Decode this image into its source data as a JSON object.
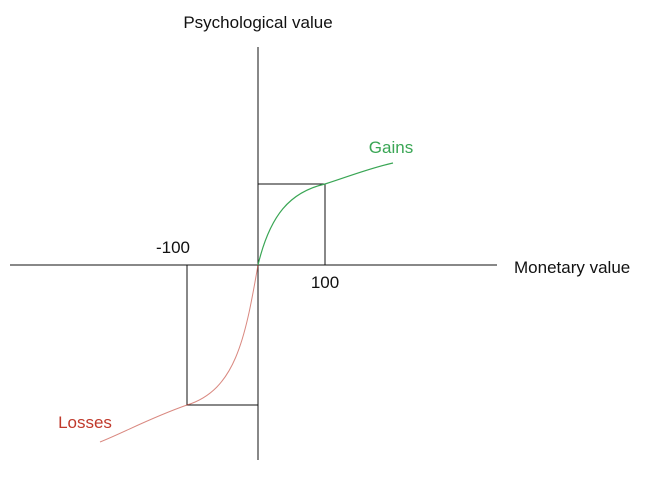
{
  "axes": {
    "y_label": "Psychological value",
    "x_label": "Monetary value"
  },
  "ticks": [
    -100,
    100
  ],
  "curves": [
    {
      "label": "Gains",
      "color": "#3aa655"
    },
    {
      "label": "Losses",
      "color": "#c0392b"
    }
  ]
}
